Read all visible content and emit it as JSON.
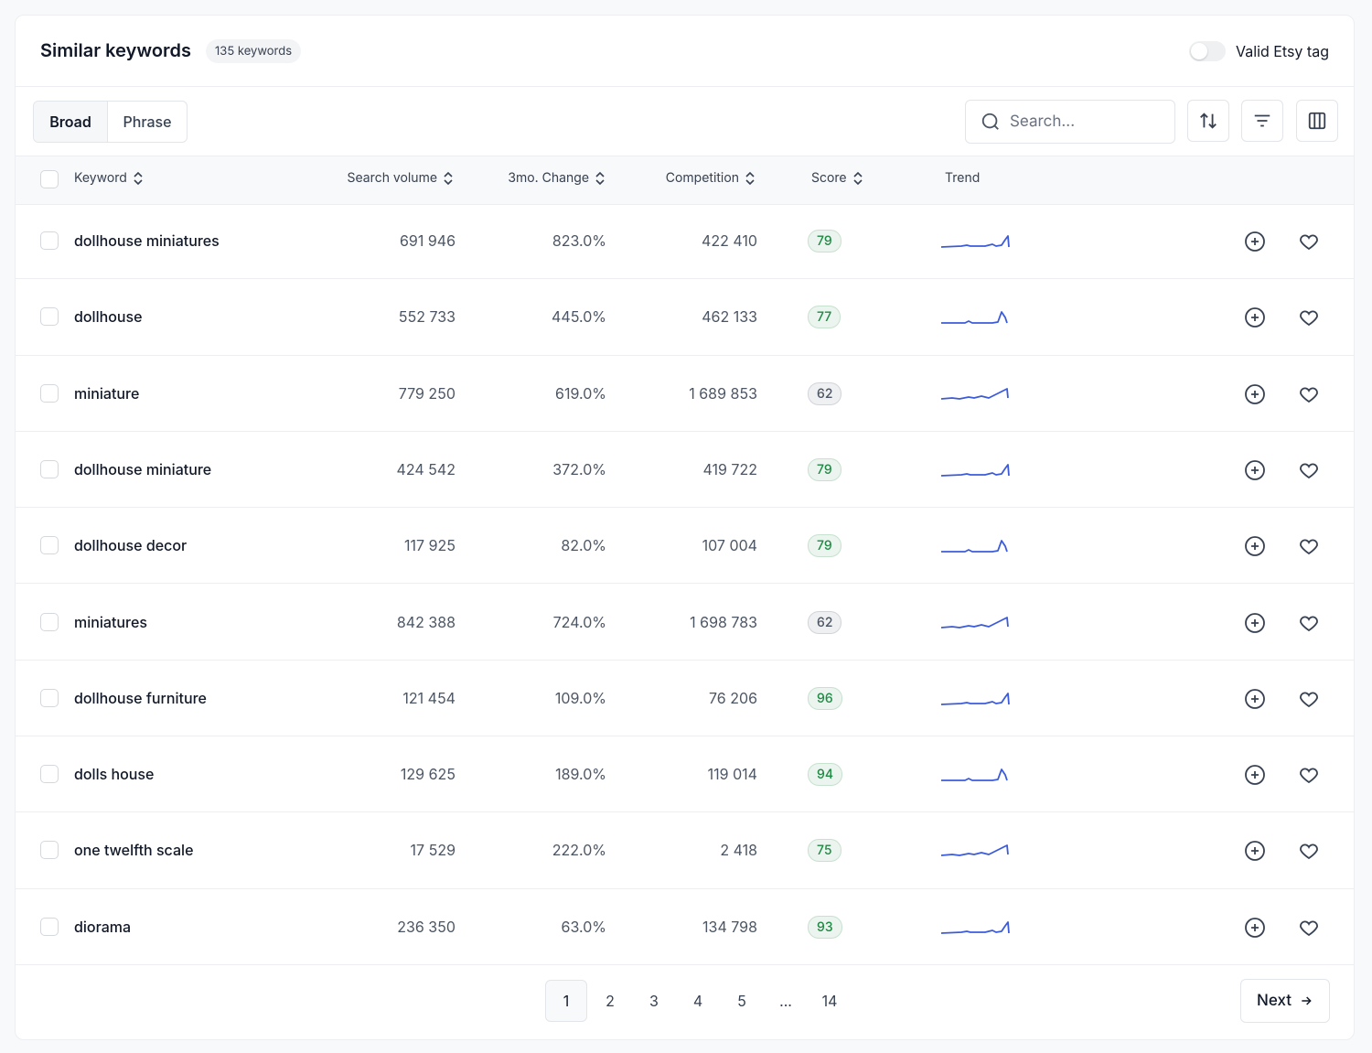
{
  "header": {
    "title": "Similar keywords",
    "count": "135 keywords",
    "toggle_label": "Valid Etsy tag"
  },
  "toolbar": {
    "tabs": [
      "Broad",
      "Phrase"
    ],
    "search_placeholder": "Search..."
  },
  "table": {
    "columns": [
      "Keyword",
      "Search volume",
      "3mo. Change",
      "Competition",
      "Score",
      "Trend"
    ],
    "rows": [
      {
        "keyword": "dollhouse miniatures",
        "search_volume": "691 946",
        "change": "823.0%",
        "competition": "422 410",
        "score": 79,
        "score_color": "#1f8a44"
      },
      {
        "keyword": "dollhouse",
        "search_volume": "552 733",
        "change": "445.0%",
        "competition": "462 133",
        "score": 77,
        "score_color": "#1f8a44"
      },
      {
        "keyword": "miniature",
        "search_volume": "779 250",
        "change": "619.0%",
        "competition": "1 689 853",
        "score": 62,
        "score_color": "#4b5563"
      },
      {
        "keyword": "dollhouse miniature",
        "search_volume": "424 542",
        "change": "372.0%",
        "competition": "419 722",
        "score": 79,
        "score_color": "#1f8a44"
      },
      {
        "keyword": "dollhouse decor",
        "search_volume": "117 925",
        "change": "82.0%",
        "competition": "107 004",
        "score": 79,
        "score_color": "#1f8a44"
      },
      {
        "keyword": "miniatures",
        "search_volume": "842 388",
        "change": "724.0%",
        "competition": "1 698 783",
        "score": 62,
        "score_color": "#4b5563"
      },
      {
        "keyword": "dollhouse furniture",
        "search_volume": "121 454",
        "change": "109.0%",
        "competition": "76 206",
        "score": 96,
        "score_color": "#1f8a44"
      },
      {
        "keyword": "dolls house",
        "search_volume": "129 625",
        "change": "189.0%",
        "competition": "119 014",
        "score": 94,
        "score_color": "#1f8a44"
      },
      {
        "keyword": "one twelfth scale",
        "search_volume": "17 529",
        "change": "222.0%",
        "competition": "2 418",
        "score": 75,
        "score_color": "#1f8a44"
      },
      {
        "keyword": "diorama",
        "search_volume": "236 350",
        "change": "63.0%",
        "competition": "134 798",
        "score": 93,
        "score_color": "#1f8a44"
      }
    ]
  },
  "pagination": {
    "pages": [
      "1",
      "2",
      "3",
      "4",
      "5",
      "...",
      "14"
    ],
    "next": "Next"
  }
}
